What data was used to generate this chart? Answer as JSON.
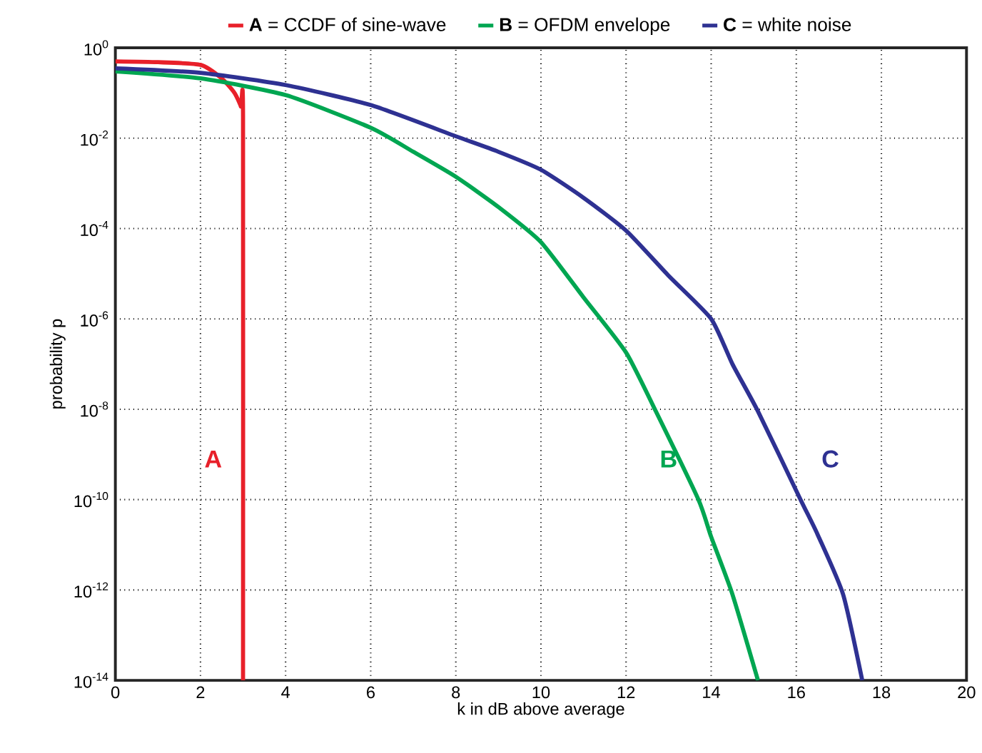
{
  "chart_data": {
    "type": "line",
    "xlabel": "k in dB above average",
    "ylabel": "probability p",
    "log": "y",
    "grid": true,
    "legend": "top",
    "line_style": "solid",
    "marker": "none",
    "xlim": [
      0,
      20
    ],
    "xticks": [
      0,
      2,
      4,
      6,
      8,
      10,
      12,
      14,
      16,
      18,
      20
    ],
    "ylim": [
      1e-14,
      1
    ],
    "yticks": [
      {
        "value": 1,
        "label": "10$^{0}$"
      },
      {
        "value": 0.01,
        "label": "10$^{-2}$"
      },
      {
        "value": 0.0001,
        "label": "10$^{-4}$"
      },
      {
        "value": 1e-06,
        "label": "10$^{-6}$"
      },
      {
        "value": 1e-08,
        "label": "10$^{-8}$"
      },
      {
        "value": 1e-10,
        "label": "10$^{-10}$"
      },
      {
        "value": 1e-12,
        "label": "10$^{-12}$"
      },
      {
        "value": 1e-14,
        "label": "10$^{-14}$"
      }
    ],
    "series": [
      {
        "name": "**A** = CCDF of sine-wave",
        "color": "#e8202a",
        "x": [
          0,
          1,
          2,
          2.5,
          2.8,
          2.95,
          3.0,
          3.0
        ],
        "values": [
          0.5,
          0.48,
          0.42,
          0.21,
          0.1,
          0.05,
          0.03,
          1e-14
        ]
      },
      {
        "name": "**B** = OFDM envelope",
        "color": "#00a651",
        "x": [
          0,
          2,
          4,
          6,
          7,
          8,
          9,
          10,
          11,
          12,
          12.7,
          13.7,
          14,
          14.5,
          15.1
        ],
        "values": [
          0.3,
          0.21,
          0.09,
          0.017,
          0.005,
          0.0014,
          0.0003,
          5e-05,
          3e-06,
          1.8e-07,
          9e-09,
          1e-10,
          1.5e-11,
          8e-13,
          1e-14
        ]
      },
      {
        "name": "**C** = white noise",
        "color": "#2e3192",
        "x": [
          0,
          2,
          4,
          6,
          8,
          9,
          10,
          11,
          12,
          13,
          14,
          14.5,
          15.1,
          16.1,
          16.5,
          17.1,
          17.55
        ],
        "values": [
          0.35,
          0.28,
          0.15,
          0.054,
          0.011,
          0.005,
          0.002,
          0.00048,
          9e-05,
          9e-06,
          1e-06,
          1e-07,
          9e-09,
          1e-10,
          1.7e-11,
          8e-13,
          1e-14
        ]
      }
    ],
    "annotations": [
      "A",
      "B",
      "C"
    ]
  }
}
